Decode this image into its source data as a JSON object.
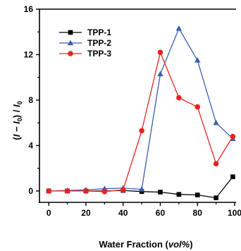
{
  "chart_data": {
    "type": "line",
    "xlabel": "Water Fraction (vol%)",
    "xlabel_parts": {
      "prefix": "Water Fraction (",
      "unit": "vol%",
      "suffix": ")"
    },
    "ylabel": "(I − I0) / I0",
    "ylabel_parts": {
      "open": "(",
      "I": "I",
      "minus": " − ",
      "I0": "I",
      "sub0": "0",
      "close": ")",
      "slash": " / ",
      "I0b": "I",
      "sub0b": "0"
    },
    "xlim": [
      -5,
      100
    ],
    "ylim": [
      -1,
      16
    ],
    "xticks": [
      0,
      20,
      40,
      60,
      80,
      100
    ],
    "xtick_labels": [
      "0",
      "20",
      "40",
      "60",
      "80",
      "100"
    ],
    "yticks": [
      0,
      4,
      8,
      12,
      16
    ],
    "ytick_labels": [
      "0",
      "4",
      "8",
      "12",
      "16"
    ],
    "legend_position": "top-left",
    "grid": false,
    "series": [
      {
        "name": "TPP-1",
        "color": "#000000",
        "marker": "square",
        "x": [
          0,
          10,
          20,
          30,
          40,
          50,
          60,
          70,
          80,
          90,
          99
        ],
        "y": [
          0.0,
          0.0,
          0.0,
          0.0,
          0.05,
          -0.05,
          -0.1,
          -0.3,
          -0.35,
          -0.6,
          1.25
        ]
      },
      {
        "name": "TPP-2",
        "color": "#3a5fb0",
        "marker": "triangle",
        "x": [
          0,
          10,
          20,
          30,
          40,
          50,
          60,
          70,
          80,
          90,
          99
        ],
        "y": [
          0.0,
          0.05,
          0.1,
          0.2,
          0.25,
          0.15,
          10.3,
          14.3,
          11.5,
          6.0,
          4.6
        ]
      },
      {
        "name": "TPP-3",
        "color": "#e8231f",
        "marker": "circle",
        "x": [
          0,
          10,
          20,
          30,
          40,
          50,
          60,
          70,
          80,
          90,
          99
        ],
        "y": [
          0.0,
          0.0,
          0.0,
          -0.05,
          0.1,
          5.3,
          12.2,
          8.2,
          7.4,
          2.4,
          4.8
        ]
      }
    ]
  }
}
